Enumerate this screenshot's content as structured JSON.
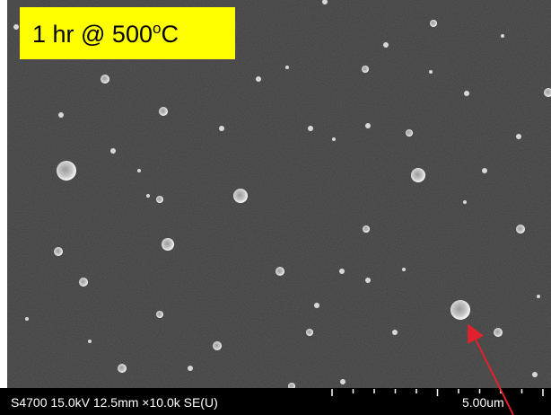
{
  "label": {
    "main": "1 hr @ 500",
    "sup": "o",
    "unit": "C"
  },
  "footer": {
    "info": "S4700 15.0kV 12.5mm ×10.0k SE(U)",
    "scale": "5.00um"
  }
}
